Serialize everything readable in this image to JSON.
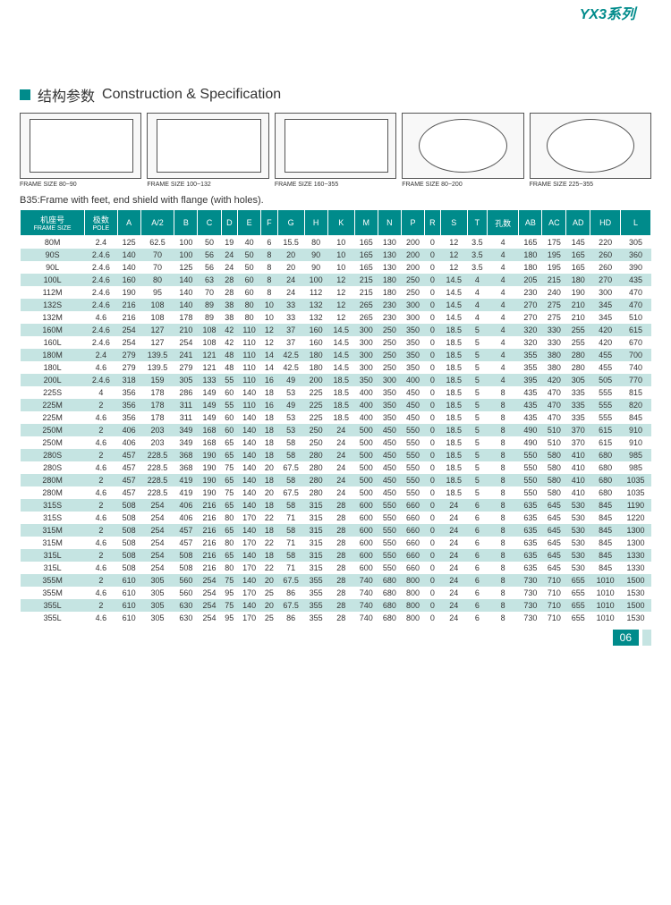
{
  "series": "YX3系列",
  "section": {
    "cn": "结构参数",
    "en": "Construction & Specification"
  },
  "diagrams": [
    {
      "label": "FRAME SIZE 80~90"
    },
    {
      "label": "FRAME SIZE 100~132"
    },
    {
      "label": "FRAME SIZE 160~355"
    },
    {
      "label": "FRAME SIZE 80~200"
    },
    {
      "label": "FRAME SIZE 225~355"
    }
  ],
  "note": "B35:Frame with feet, end shield with flange (with holes).",
  "columns": [
    {
      "h": "机座号",
      "s": "FRAME SIZE"
    },
    {
      "h": "极数",
      "s": "POLE"
    },
    {
      "h": "A"
    },
    {
      "h": "A/2"
    },
    {
      "h": "B"
    },
    {
      "h": "C"
    },
    {
      "h": "D"
    },
    {
      "h": "E"
    },
    {
      "h": "F"
    },
    {
      "h": "G"
    },
    {
      "h": "H"
    },
    {
      "h": "K"
    },
    {
      "h": "M"
    },
    {
      "h": "N"
    },
    {
      "h": "P"
    },
    {
      "h": "R"
    },
    {
      "h": "S"
    },
    {
      "h": "T"
    },
    {
      "h": "孔数"
    },
    {
      "h": "AB"
    },
    {
      "h": "AC"
    },
    {
      "h": "AD"
    },
    {
      "h": "HD"
    },
    {
      "h": "L"
    }
  ],
  "rows": [
    [
      "80M",
      "2.4",
      "125",
      "62.5",
      "100",
      "50",
      "19",
      "40",
      "6",
      "15.5",
      "80",
      "10",
      "165",
      "130",
      "200",
      "0",
      "12",
      "3.5",
      "4",
      "165",
      "175",
      "145",
      "220",
      "305"
    ],
    [
      "90S",
      "2.4.6",
      "140",
      "70",
      "100",
      "56",
      "24",
      "50",
      "8",
      "20",
      "90",
      "10",
      "165",
      "130",
      "200",
      "0",
      "12",
      "3.5",
      "4",
      "180",
      "195",
      "165",
      "260",
      "360"
    ],
    [
      "90L",
      "2.4.6",
      "140",
      "70",
      "125",
      "56",
      "24",
      "50",
      "8",
      "20",
      "90",
      "10",
      "165",
      "130",
      "200",
      "0",
      "12",
      "3.5",
      "4",
      "180",
      "195",
      "165",
      "260",
      "390"
    ],
    [
      "100L",
      "2.4.6",
      "160",
      "80",
      "140",
      "63",
      "28",
      "60",
      "8",
      "24",
      "100",
      "12",
      "215",
      "180",
      "250",
      "0",
      "14.5",
      "4",
      "4",
      "205",
      "215",
      "180",
      "270",
      "435"
    ],
    [
      "112M",
      "2.4.6",
      "190",
      "95",
      "140",
      "70",
      "28",
      "60",
      "8",
      "24",
      "112",
      "12",
      "215",
      "180",
      "250",
      "0",
      "14.5",
      "4",
      "4",
      "230",
      "240",
      "190",
      "300",
      "470"
    ],
    [
      "132S",
      "2.4.6",
      "216",
      "108",
      "140",
      "89",
      "38",
      "80",
      "10",
      "33",
      "132",
      "12",
      "265",
      "230",
      "300",
      "0",
      "14.5",
      "4",
      "4",
      "270",
      "275",
      "210",
      "345",
      "470"
    ],
    [
      "132M",
      "4.6",
      "216",
      "108",
      "178",
      "89",
      "38",
      "80",
      "10",
      "33",
      "132",
      "12",
      "265",
      "230",
      "300",
      "0",
      "14.5",
      "4",
      "4",
      "270",
      "275",
      "210",
      "345",
      "510"
    ],
    [
      "160M",
      "2.4.6",
      "254",
      "127",
      "210",
      "108",
      "42",
      "110",
      "12",
      "37",
      "160",
      "14.5",
      "300",
      "250",
      "350",
      "0",
      "18.5",
      "5",
      "4",
      "320",
      "330",
      "255",
      "420",
      "615"
    ],
    [
      "160L",
      "2.4.6",
      "254",
      "127",
      "254",
      "108",
      "42",
      "110",
      "12",
      "37",
      "160",
      "14.5",
      "300",
      "250",
      "350",
      "0",
      "18.5",
      "5",
      "4",
      "320",
      "330",
      "255",
      "420",
      "670"
    ],
    [
      "180M",
      "2.4",
      "279",
      "139.5",
      "241",
      "121",
      "48",
      "110",
      "14",
      "42.5",
      "180",
      "14.5",
      "300",
      "250",
      "350",
      "0",
      "18.5",
      "5",
      "4",
      "355",
      "380",
      "280",
      "455",
      "700"
    ],
    [
      "180L",
      "4.6",
      "279",
      "139.5",
      "279",
      "121",
      "48",
      "110",
      "14",
      "42.5",
      "180",
      "14.5",
      "300",
      "250",
      "350",
      "0",
      "18.5",
      "5",
      "4",
      "355",
      "380",
      "280",
      "455",
      "740"
    ],
    [
      "200L",
      "2.4.6",
      "318",
      "159",
      "305",
      "133",
      "55",
      "110",
      "16",
      "49",
      "200",
      "18.5",
      "350",
      "300",
      "400",
      "0",
      "18.5",
      "5",
      "4",
      "395",
      "420",
      "305",
      "505",
      "770"
    ],
    [
      "225S",
      "4",
      "356",
      "178",
      "286",
      "149",
      "60",
      "140",
      "18",
      "53",
      "225",
      "18.5",
      "400",
      "350",
      "450",
      "0",
      "18.5",
      "5",
      "8",
      "435",
      "470",
      "335",
      "555",
      "815"
    ],
    [
      "225M",
      "2",
      "356",
      "178",
      "311",
      "149",
      "55",
      "110",
      "16",
      "49",
      "225",
      "18.5",
      "400",
      "350",
      "450",
      "0",
      "18.5",
      "5",
      "8",
      "435",
      "470",
      "335",
      "555",
      "820"
    ],
    [
      "225M",
      "4.6",
      "356",
      "178",
      "311",
      "149",
      "60",
      "140",
      "18",
      "53",
      "225",
      "18.5",
      "400",
      "350",
      "450",
      "0",
      "18.5",
      "5",
      "8",
      "435",
      "470",
      "335",
      "555",
      "845"
    ],
    [
      "250M",
      "2",
      "406",
      "203",
      "349",
      "168",
      "60",
      "140",
      "18",
      "53",
      "250",
      "24",
      "500",
      "450",
      "550",
      "0",
      "18.5",
      "5",
      "8",
      "490",
      "510",
      "370",
      "615",
      "910"
    ],
    [
      "250M",
      "4.6",
      "406",
      "203",
      "349",
      "168",
      "65",
      "140",
      "18",
      "58",
      "250",
      "24",
      "500",
      "450",
      "550",
      "0",
      "18.5",
      "5",
      "8",
      "490",
      "510",
      "370",
      "615",
      "910"
    ],
    [
      "280S",
      "2",
      "457",
      "228.5",
      "368",
      "190",
      "65",
      "140",
      "18",
      "58",
      "280",
      "24",
      "500",
      "450",
      "550",
      "0",
      "18.5",
      "5",
      "8",
      "550",
      "580",
      "410",
      "680",
      "985"
    ],
    [
      "280S",
      "4.6",
      "457",
      "228.5",
      "368",
      "190",
      "75",
      "140",
      "20",
      "67.5",
      "280",
      "24",
      "500",
      "450",
      "550",
      "0",
      "18.5",
      "5",
      "8",
      "550",
      "580",
      "410",
      "680",
      "985"
    ],
    [
      "280M",
      "2",
      "457",
      "228.5",
      "419",
      "190",
      "65",
      "140",
      "18",
      "58",
      "280",
      "24",
      "500",
      "450",
      "550",
      "0",
      "18.5",
      "5",
      "8",
      "550",
      "580",
      "410",
      "680",
      "1035"
    ],
    [
      "280M",
      "4.6",
      "457",
      "228.5",
      "419",
      "190",
      "75",
      "140",
      "20",
      "67.5",
      "280",
      "24",
      "500",
      "450",
      "550",
      "0",
      "18.5",
      "5",
      "8",
      "550",
      "580",
      "410",
      "680",
      "1035"
    ],
    [
      "315S",
      "2",
      "508",
      "254",
      "406",
      "216",
      "65",
      "140",
      "18",
      "58",
      "315",
      "28",
      "600",
      "550",
      "660",
      "0",
      "24",
      "6",
      "8",
      "635",
      "645",
      "530",
      "845",
      "1190"
    ],
    [
      "315S",
      "4.6",
      "508",
      "254",
      "406",
      "216",
      "80",
      "170",
      "22",
      "71",
      "315",
      "28",
      "600",
      "550",
      "660",
      "0",
      "24",
      "6",
      "8",
      "635",
      "645",
      "530",
      "845",
      "1220"
    ],
    [
      "315M",
      "2",
      "508",
      "254",
      "457",
      "216",
      "65",
      "140",
      "18",
      "58",
      "315",
      "28",
      "600",
      "550",
      "660",
      "0",
      "24",
      "6",
      "8",
      "635",
      "645",
      "530",
      "845",
      "1300"
    ],
    [
      "315M",
      "4.6",
      "508",
      "254",
      "457",
      "216",
      "80",
      "170",
      "22",
      "71",
      "315",
      "28",
      "600",
      "550",
      "660",
      "0",
      "24",
      "6",
      "8",
      "635",
      "645",
      "530",
      "845",
      "1300"
    ],
    [
      "315L",
      "2",
      "508",
      "254",
      "508",
      "216",
      "65",
      "140",
      "18",
      "58",
      "315",
      "28",
      "600",
      "550",
      "660",
      "0",
      "24",
      "6",
      "8",
      "635",
      "645",
      "530",
      "845",
      "1330"
    ],
    [
      "315L",
      "4.6",
      "508",
      "254",
      "508",
      "216",
      "80",
      "170",
      "22",
      "71",
      "315",
      "28",
      "600",
      "550",
      "660",
      "0",
      "24",
      "6",
      "8",
      "635",
      "645",
      "530",
      "845",
      "1330"
    ],
    [
      "355M",
      "2",
      "610",
      "305",
      "560",
      "254",
      "75",
      "140",
      "20",
      "67.5",
      "355",
      "28",
      "740",
      "680",
      "800",
      "0",
      "24",
      "6",
      "8",
      "730",
      "710",
      "655",
      "1010",
      "1500"
    ],
    [
      "355M",
      "4.6",
      "610",
      "305",
      "560",
      "254",
      "95",
      "170",
      "25",
      "86",
      "355",
      "28",
      "740",
      "680",
      "800",
      "0",
      "24",
      "6",
      "8",
      "730",
      "710",
      "655",
      "1010",
      "1530"
    ],
    [
      "355L",
      "2",
      "610",
      "305",
      "630",
      "254",
      "75",
      "140",
      "20",
      "67.5",
      "355",
      "28",
      "740",
      "680",
      "800",
      "0",
      "24",
      "6",
      "8",
      "730",
      "710",
      "655",
      "1010",
      "1500"
    ],
    [
      "355L",
      "4.6",
      "610",
      "305",
      "630",
      "254",
      "95",
      "170",
      "25",
      "86",
      "355",
      "28",
      "740",
      "680",
      "800",
      "0",
      "24",
      "6",
      "8",
      "730",
      "710",
      "655",
      "1010",
      "1530"
    ]
  ],
  "pageNumber": "06",
  "colors": {
    "teal": "#008b8b",
    "cyan": "#c5e4e2",
    "midcyan": "#7ec9c5"
  }
}
